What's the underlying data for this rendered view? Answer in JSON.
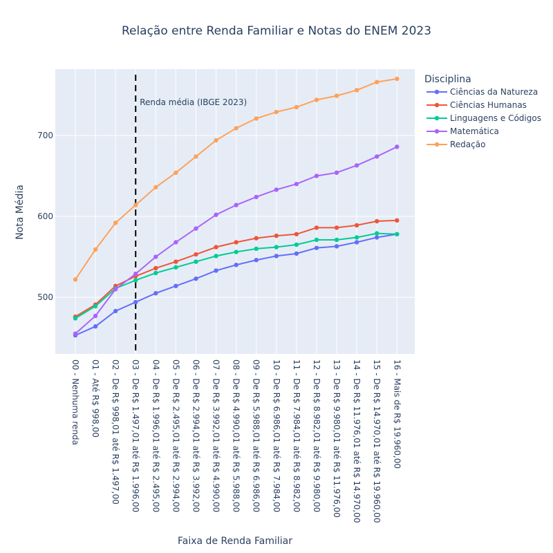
{
  "chart_data": {
    "type": "line",
    "title": "Relação entre Renda Familiar e Notas do ENEM 2023",
    "xlabel": "Faixa de Renda Familiar",
    "ylabel": "Nota Média",
    "legend_title": "Disciplina",
    "legend_position": "top-right",
    "grid": true,
    "ylim": [
      430,
      782
    ],
    "yticks": [
      500,
      600,
      700
    ],
    "categories": [
      "00 - Nenhuma renda",
      "01 - Até R$ 998,00",
      "02 - De R$ 998,01 até R$ 1.497,00",
      "03 - De R$ 1.497,01 até R$ 1.996,00",
      "04 - De R$ 1.996,01 até R$ 2.495,00",
      "05 - De R$ 2.495,01 até R$ 2.994,00",
      "06 - De R$ 2.994,01 até R$ 3.992,00",
      "07 - De R$ 3.992,01 até R$ 4.990,00",
      "08 - De R$ 4.990,01 até R$ 5.988,00",
      "09 - De R$ 5.988,01 até R$ 6.986,00",
      "10 - De R$ 6.986,01 até R$ 7.984,00",
      "11 - De R$ 7.984,01 até R$ 8.982,00",
      "12 - De R$ 8.982,01 até R$ 9.980,00",
      "13 - De R$ 9.980,01 até R$ 11.976,00",
      "14 - De R$ 11.976,01 até R$ 14.970,00",
      "15 - De R$ 14.970,01 até R$ 19.960,00",
      "16 - Mais de R$ 19.960,00"
    ],
    "series": [
      {
        "name": "Ciências da Natureza",
        "color": "#636efa",
        "values": [
          453,
          464,
          483,
          494,
          505,
          514,
          523,
          533,
          540,
          546,
          551,
          554,
          561,
          563,
          568,
          574,
          578
        ]
      },
      {
        "name": "Ciências Humanas",
        "color": "#ef553b",
        "values": [
          476,
          491,
          514,
          526,
          536,
          544,
          553,
          562,
          568,
          573,
          576,
          578,
          586,
          586,
          589,
          594,
          595
        ]
      },
      {
        "name": "Linguagens e Códigos",
        "color": "#00cc96",
        "values": [
          474,
          489,
          511,
          521,
          530,
          537,
          544,
          551,
          556,
          560,
          562,
          565,
          571,
          571,
          574,
          579,
          578
        ]
      },
      {
        "name": "Matemática",
        "color": "#ab63fa",
        "values": [
          455,
          477,
          510,
          529,
          550,
          568,
          585,
          602,
          614,
          624,
          633,
          640,
          650,
          654,
          663,
          674,
          686
        ]
      },
      {
        "name": "Redação",
        "color": "#ffa15a",
        "values": [
          522,
          559,
          592,
          614,
          636,
          654,
          674,
          694,
          709,
          721,
          729,
          735,
          744,
          749,
          756,
          766,
          770
        ]
      }
    ],
    "annotation": {
      "x_category_index": 3,
      "text": "Renda média (IBGE 2023)",
      "line_style": "dashed"
    }
  }
}
